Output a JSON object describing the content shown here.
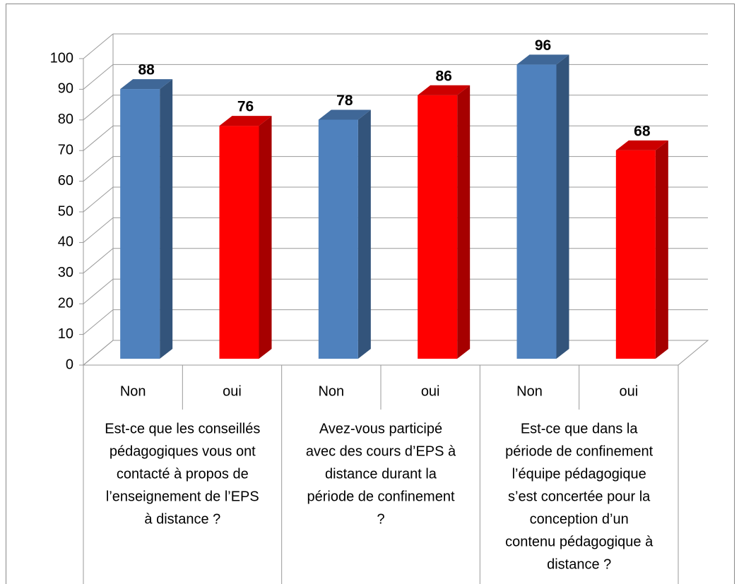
{
  "chart_data": {
    "type": "bar",
    "categories": [
      "Non",
      "oui",
      "Non",
      "oui",
      "Non",
      "oui"
    ],
    "groups": [
      [
        "Est-ce que les conseillés",
        "pédagogiques vous ont",
        "contacté à propos de",
        "l’enseignement de l’EPS",
        "à distance ?"
      ],
      [
        "Avez-vous participé",
        "avec des cours d’EPS à",
        "distance durant la",
        "période de confinement",
        "?"
      ],
      [
        "Est-ce que dans la",
        "période de confinement",
        "l’équipe pédagogique",
        "s’est concertée pour la",
        "conception d’un",
        "contenu pédagogique à",
        "distance ?"
      ]
    ],
    "values": [
      88,
      76,
      78,
      86,
      96,
      68
    ],
    "colors": [
      "#4f81bd",
      "#ff0000",
      "#4f81bd",
      "#ff0000",
      "#4f81bd",
      "#ff0000"
    ],
    "ylim": [
      0,
      100
    ],
    "yticks": [
      0,
      10,
      20,
      30,
      40,
      50,
      60,
      70,
      80,
      90,
      100
    ],
    "grid": true
  }
}
